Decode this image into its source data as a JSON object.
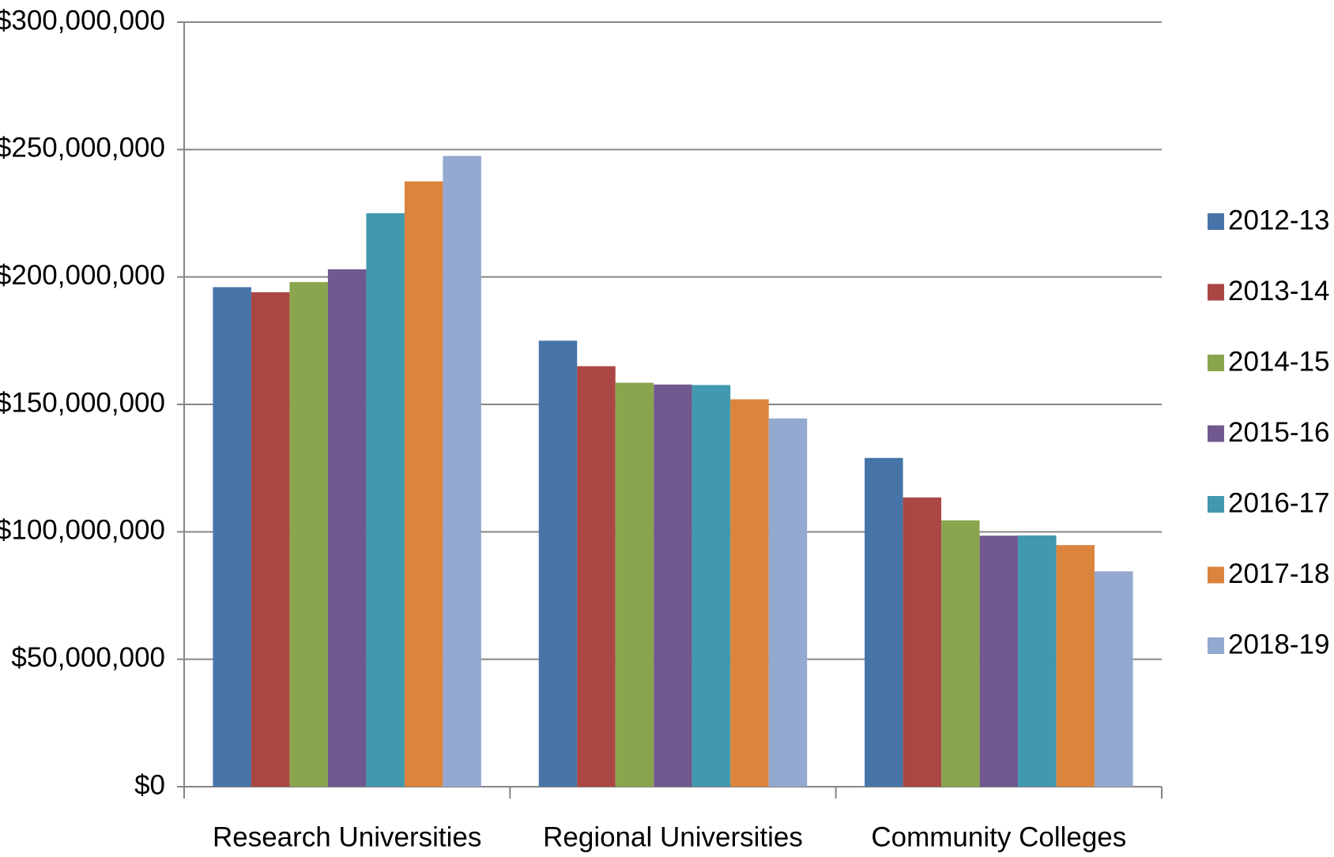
{
  "chart_data": {
    "type": "bar",
    "title": "",
    "xlabel": "",
    "ylabel": "",
    "categories": [
      "Research Universities",
      "Regional Universities",
      "Community Colleges"
    ],
    "ylim": [
      0,
      300000000
    ],
    "yticks": [
      {
        "value": 0,
        "label": "$0"
      },
      {
        "value": 50000000,
        "label": "$50,000,000"
      },
      {
        "value": 100000000,
        "label": "$100,000,000"
      },
      {
        "value": 150000000,
        "label": "$150,000,000"
      },
      {
        "value": 200000000,
        "label": "$200,000,000"
      },
      {
        "value": 250000000,
        "label": "$250,000,000"
      },
      {
        "value": 300000000,
        "label": "$300,000,000"
      }
    ],
    "grid": true,
    "legend_position": "right",
    "series": [
      {
        "name": "2012-13",
        "color": "#4674A8",
        "values": [
          196000000,
          175000000,
          129000000
        ]
      },
      {
        "name": "2013-14",
        "color": "#AA4644",
        "values": [
          194000000,
          165000000,
          113500000
        ]
      },
      {
        "name": "2014-15",
        "color": "#89A54E",
        "values": [
          198000000,
          158500000,
          104500000
        ]
      },
      {
        "name": "2015-16",
        "color": "#71588F",
        "values": [
          203000000,
          157800000,
          98500000
        ]
      },
      {
        "name": "2016-17",
        "color": "#4198AF",
        "values": [
          225000000,
          157600000,
          98600000
        ]
      },
      {
        "name": "2017-18",
        "color": "#DB843D",
        "values": [
          237500000,
          152000000,
          94800000
        ]
      },
      {
        "name": "2018-19",
        "color": "#93A9CF",
        "values": [
          247500000,
          144500000,
          84500000
        ]
      }
    ]
  }
}
